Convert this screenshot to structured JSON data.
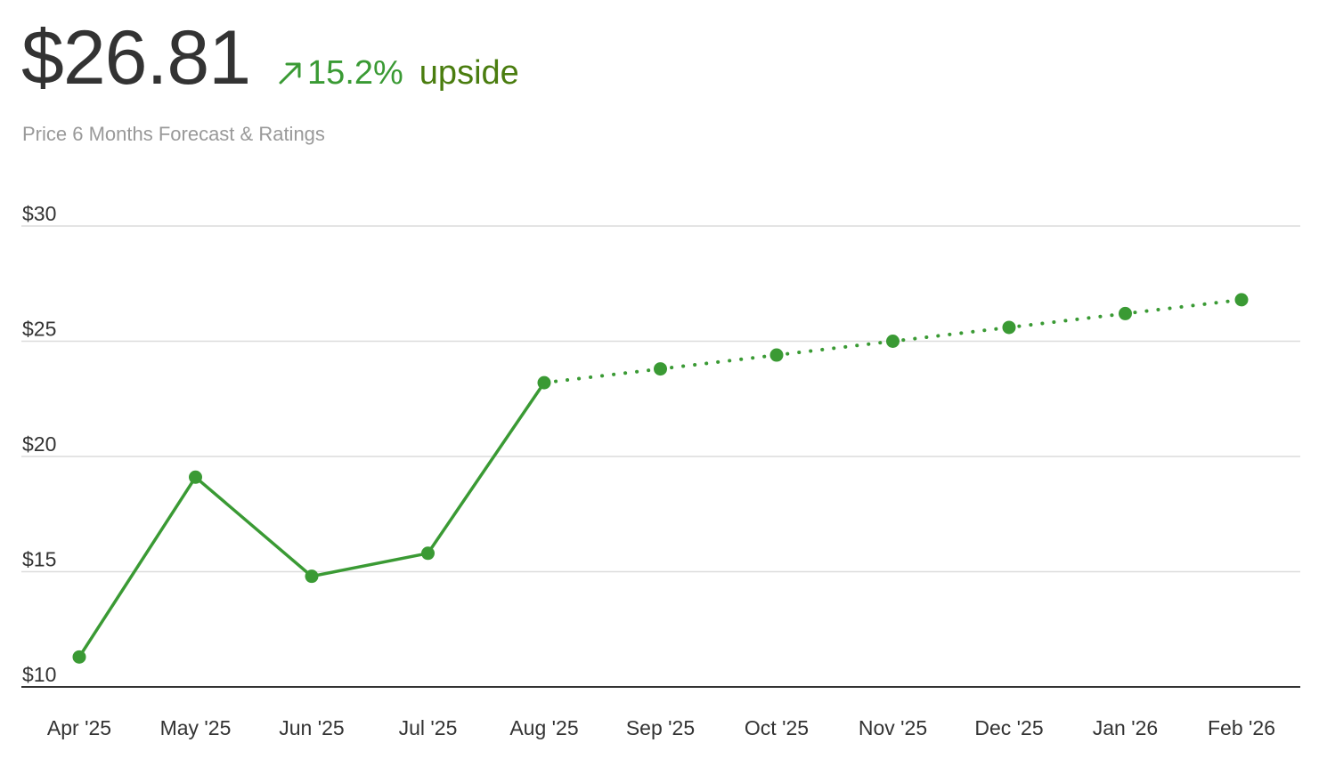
{
  "header": {
    "price": "$26.81",
    "change_pct": "15.2%",
    "change_word": "upside",
    "arrow_icon": "arrow-up-right-icon",
    "subtitle": "Price 6 Months Forecast & Ratings"
  },
  "colors": {
    "line": "#3a9a34",
    "grid": "#dcdcdc",
    "axis": "#333333",
    "label": "#333333",
    "upside_text": "#4a7d0f"
  },
  "chart_data": {
    "type": "line",
    "categories": [
      "Apr '25",
      "May '25",
      "Jun '25",
      "Jul '25",
      "Aug '25",
      "Sep '25",
      "Oct '25",
      "Nov '25",
      "Dec '25",
      "Jan '26",
      "Feb '26"
    ],
    "series": [
      {
        "style": "solid",
        "values": [
          11.3,
          19.1,
          14.8,
          15.8,
          23.2,
          null,
          null,
          null,
          null,
          null,
          null
        ]
      },
      {
        "style": "dotted",
        "values": [
          null,
          null,
          null,
          null,
          23.2,
          23.8,
          24.4,
          25.0,
          25.6,
          26.2,
          26.8
        ]
      }
    ],
    "yticks": [
      10,
      15,
      20,
      25,
      30
    ],
    "ytick_labels": [
      "$10",
      "$15",
      "$20",
      "$25",
      "$30"
    ],
    "ylim": [
      10,
      30
    ],
    "grid": true
  }
}
